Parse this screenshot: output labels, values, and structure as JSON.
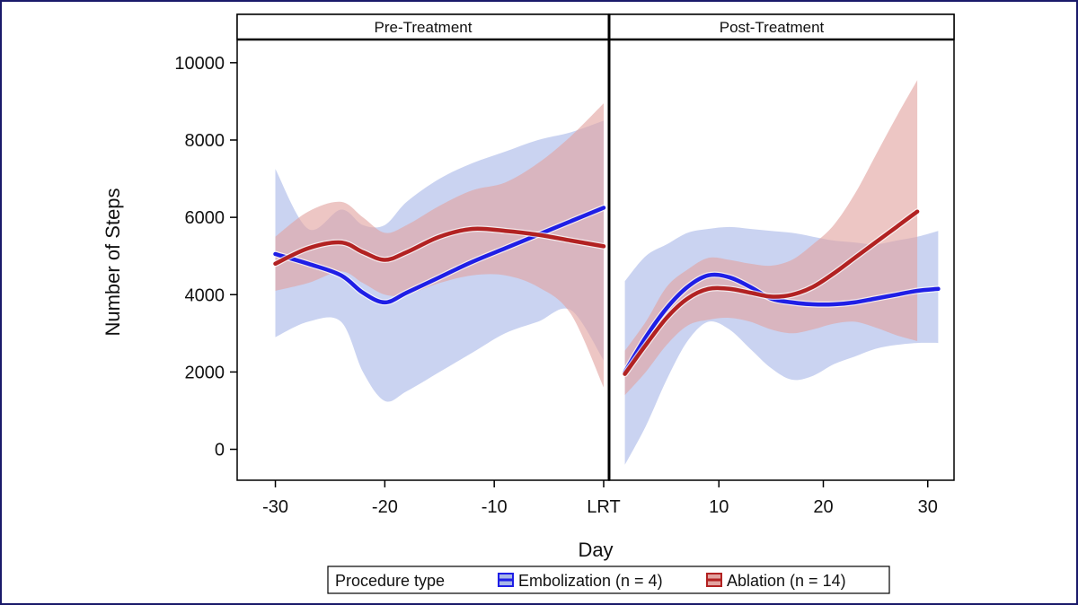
{
  "chart_data": {
    "type": "area",
    "xlabel": "Day",
    "ylabel": "Number of Steps",
    "ylim": [
      -800,
      10600
    ],
    "yticks": [
      0,
      2000,
      4000,
      6000,
      8000,
      10000
    ],
    "grid": false,
    "legend_placement": "bottom",
    "legend_title": "Procedure type",
    "panels": [
      {
        "title": "Pre-Treatment",
        "xlim": [
          -33,
          0
        ],
        "xticks": [
          {
            "value": -30,
            "label": "-30"
          },
          {
            "value": -20,
            "label": "-20"
          },
          {
            "value": -10,
            "label": "-10"
          },
          {
            "value": 0,
            "label": "LRT"
          }
        ],
        "series": [
          {
            "name": "Embolization",
            "x": [
              -30,
              -27,
              -24,
              -22,
              -20,
              -18,
              -15,
              -12,
              -9,
              -6,
              -3,
              0
            ],
            "y": [
              5050,
              4800,
              4500,
              4050,
              3800,
              4050,
              4450,
              4850,
              5200,
              5550,
              5900,
              6250
            ],
            "lower": [
              2900,
              3300,
              3300,
              2000,
              1250,
              1500,
              2000,
              2500,
              3000,
              3300,
              3600,
              2300
            ],
            "upper": [
              7250,
              5700,
              6200,
              5800,
              5800,
              6400,
              7000,
              7400,
              7700,
              8000,
              8200,
              8500
            ]
          },
          {
            "name": "Ablation",
            "x": [
              -30,
              -27,
              -24,
              -22,
              -20,
              -18,
              -15,
              -12,
              -9,
              -6,
              -3,
              0
            ],
            "y": [
              4800,
              5200,
              5350,
              5100,
              4900,
              5100,
              5500,
              5700,
              5650,
              5550,
              5400,
              5250
            ],
            "lower": [
              4100,
              4300,
              4600,
              4300,
              4000,
              4000,
              4300,
              4500,
              4500,
              4200,
              3500,
              1600
            ],
            "upper": [
              5500,
              6150,
              6400,
              6000,
              5600,
              5800,
              6300,
              6700,
              6900,
              7400,
              8100,
              8950
            ]
          }
        ]
      },
      {
        "title": "Post-Treatment",
        "xlim": [
          0,
          32
        ],
        "xticks": [
          {
            "value": 10,
            "label": "10"
          },
          {
            "value": 20,
            "label": "20"
          },
          {
            "value": 30,
            "label": "30"
          }
        ],
        "series": [
          {
            "name": "Embolization",
            "x": [
              1,
              3,
              5,
              7,
              9,
              11,
              13,
              15,
              17,
              19,
              21,
              23,
              25,
              27,
              29,
              31
            ],
            "y": [
              2000,
              2900,
              3650,
              4200,
              4500,
              4450,
              4200,
              3900,
              3800,
              3750,
              3750,
              3800,
              3900,
              4000,
              4100,
              4150
            ],
            "lower": [
              -400,
              600,
              1800,
              2800,
              3300,
              3100,
              2600,
              2100,
              1800,
              1900,
              2200,
              2400,
              2600,
              2700,
              2750,
              2750
            ],
            "upper": [
              4350,
              5000,
              5300,
              5600,
              5700,
              5750,
              5700,
              5650,
              5600,
              5500,
              5400,
              5350,
              5300,
              5400,
              5500,
              5650
            ]
          },
          {
            "name": "Ablation",
            "x": [
              1,
              3,
              5,
              7,
              9,
              11,
              13,
              15,
              17,
              19,
              21,
              23,
              25,
              27,
              29
            ],
            "y": [
              1950,
              2700,
              3400,
              3900,
              4150,
              4150,
              4050,
              3950,
              4000,
              4200,
              4550,
              4950,
              5350,
              5750,
              6150
            ],
            "lower": [
              1400,
              2000,
              2700,
              3200,
              3350,
              3400,
              3300,
              3100,
              3000,
              3100,
              3250,
              3300,
              3150,
              2950,
              2800
            ],
            "upper": [
              2550,
              3300,
              4200,
              4650,
              4950,
              4900,
              4800,
              4750,
              4900,
              5300,
              5800,
              6600,
              7600,
              8600,
              9550
            ]
          }
        ]
      }
    ],
    "legend": [
      {
        "name": "Embolization",
        "label": "Embolization (n = 4)",
        "color": "#1f1fe6",
        "band": "#a9b8e8"
      },
      {
        "name": "Ablation",
        "label": "Ablation (n = 14)",
        "color": "#b22222",
        "band": "#e2a3a0"
      }
    ]
  }
}
